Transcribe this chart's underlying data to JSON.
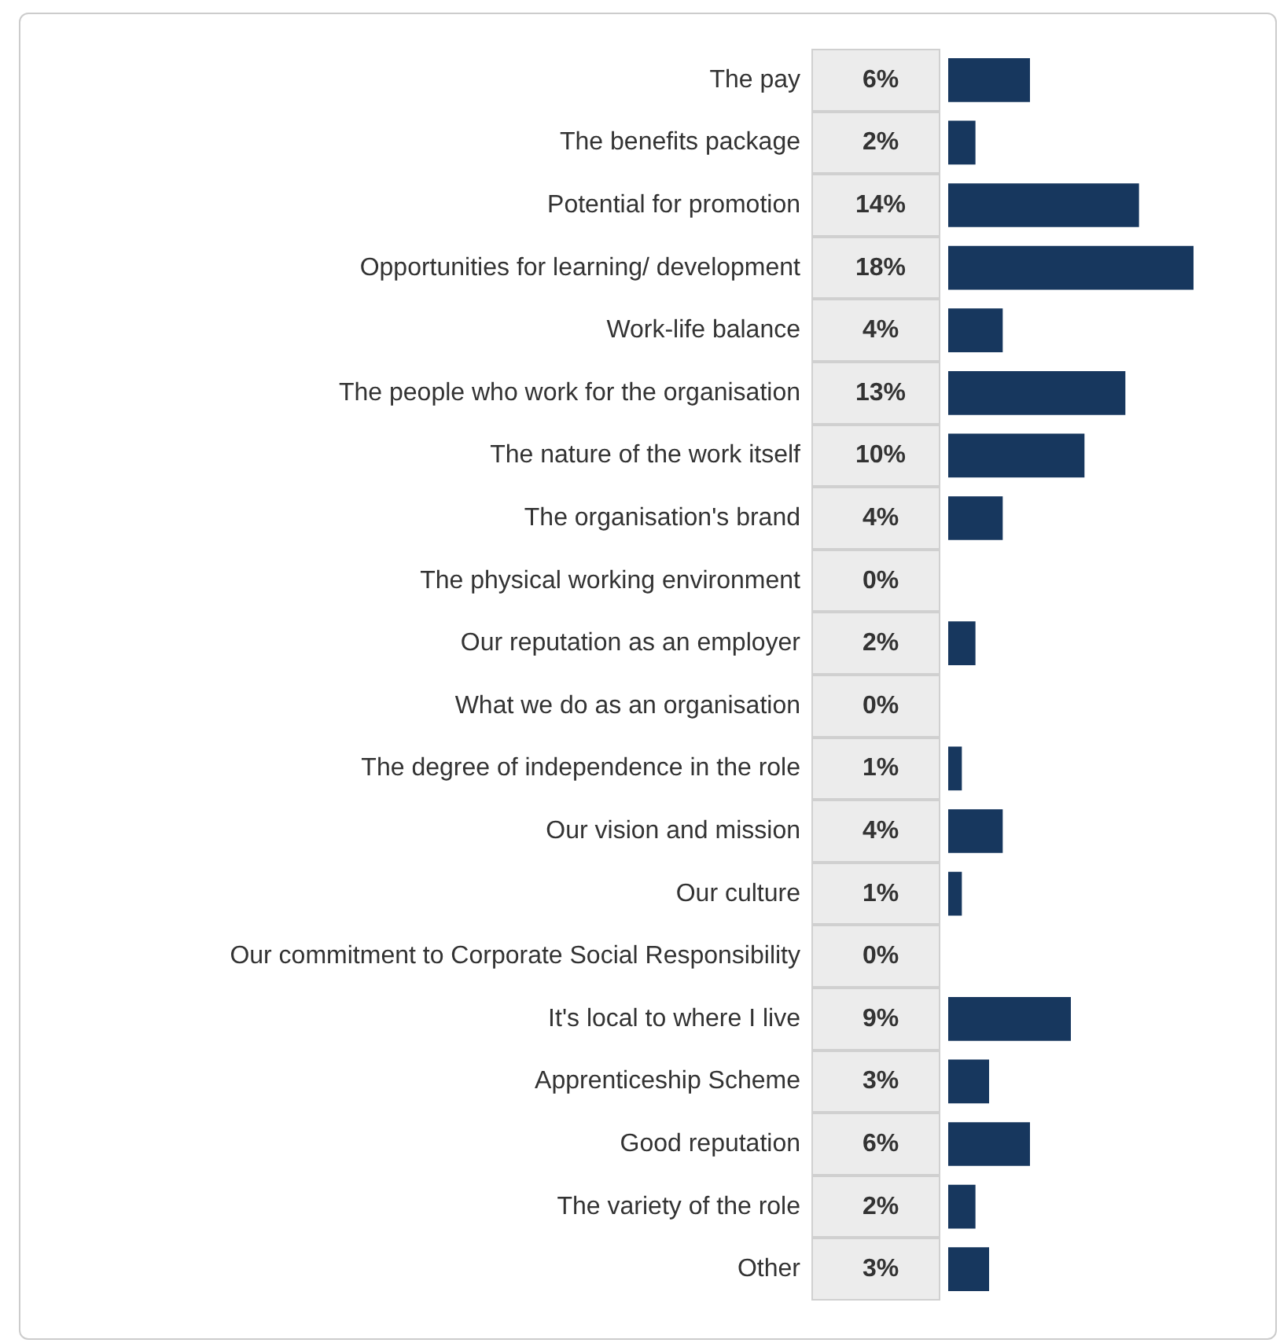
{
  "chart_data": {
    "type": "bar",
    "orientation": "horizontal",
    "color": "#17375e",
    "categories": [
      "The pay",
      "The benefits package",
      "Potential for promotion",
      "Opportunities for learning/ development",
      "Work-life balance",
      "The people who work for the organisation",
      "The nature of the work itself",
      "The organisation's brand",
      "The physical working environment",
      "Our reputation as an employer",
      "What we do as an organisation",
      "The degree of independence in the role",
      "Our vision and mission",
      "Our culture",
      "Our commitment to Corporate Social Responsibility",
      "It's local to where I live",
      "Apprenticeship Scheme",
      "Good reputation",
      "The variety of the role",
      "Other"
    ],
    "values": [
      6,
      2,
      14,
      18,
      4,
      13,
      10,
      4,
      0,
      2,
      0,
      1,
      4,
      1,
      0,
      9,
      3,
      6,
      2,
      3
    ],
    "value_labels": [
      "6%",
      "2%",
      "14%",
      "18%",
      "4%",
      "13%",
      "10%",
      "4%",
      "0%",
      "2%",
      "0%",
      "1%",
      "4%",
      "1%",
      "0%",
      "9%",
      "3%",
      "6%",
      "2%",
      "3%"
    ],
    "grid": false
  }
}
